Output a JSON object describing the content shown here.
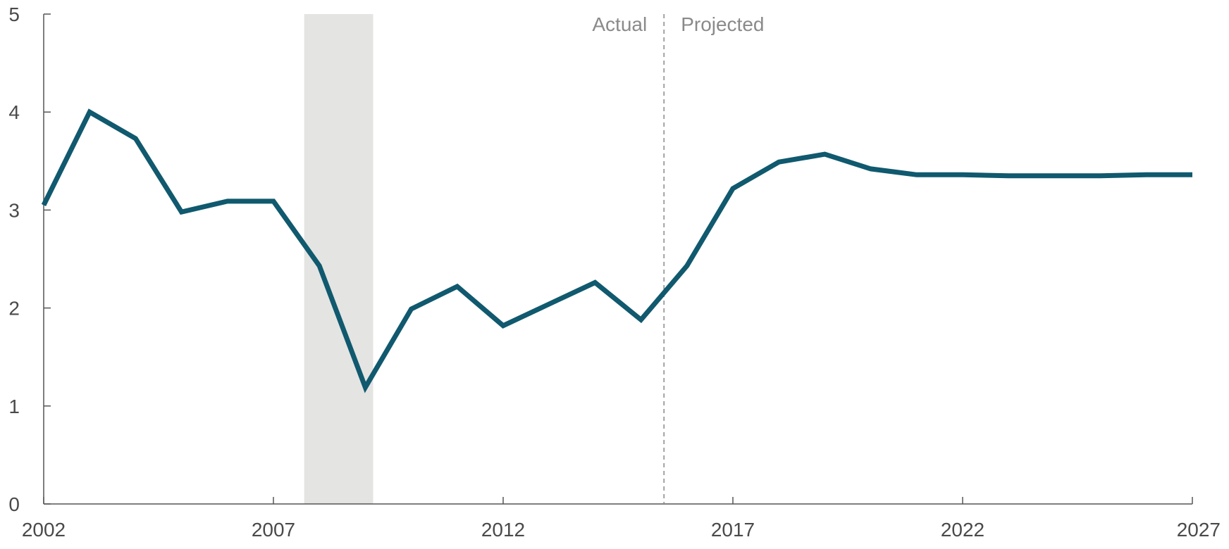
{
  "chart_data": {
    "type": "line",
    "title": "",
    "xlabel": "",
    "ylabel": "",
    "xlim": [
      2002,
      2027
    ],
    "ylim": [
      0,
      5
    ],
    "x_ticks": [
      "2002",
      "2007",
      "2012",
      "2017",
      "2022",
      "2027"
    ],
    "y_ticks": [
      "0",
      "1",
      "2",
      "3",
      "4",
      "5"
    ],
    "grid": false,
    "series": [
      {
        "color": "#10596e",
        "x": [
          2002,
          2003,
          2004,
          2005,
          2006,
          2007,
          2008,
          2009,
          2010,
          2011,
          2012,
          2013,
          2014,
          2015,
          2016,
          2017,
          2018,
          2019,
          2020,
          2021,
          2022,
          2023,
          2024,
          2025,
          2026,
          2027
        ],
        "y": [
          3.05,
          4.0,
          3.73,
          2.98,
          3.09,
          3.09,
          2.43,
          1.19,
          1.99,
          2.22,
          1.82,
          2.04,
          2.26,
          1.88,
          2.43,
          3.22,
          3.49,
          3.57,
          3.42,
          3.36,
          3.36,
          3.35,
          3.35,
          3.35,
          3.36,
          3.36
        ]
      }
    ],
    "shaded_region": {
      "x_start": 2007.67,
      "x_end": 2009.17,
      "color": "#e4e4e2"
    },
    "divider": {
      "x": 2015.5,
      "left_label": "Actual",
      "right_label": "Projected"
    }
  }
}
